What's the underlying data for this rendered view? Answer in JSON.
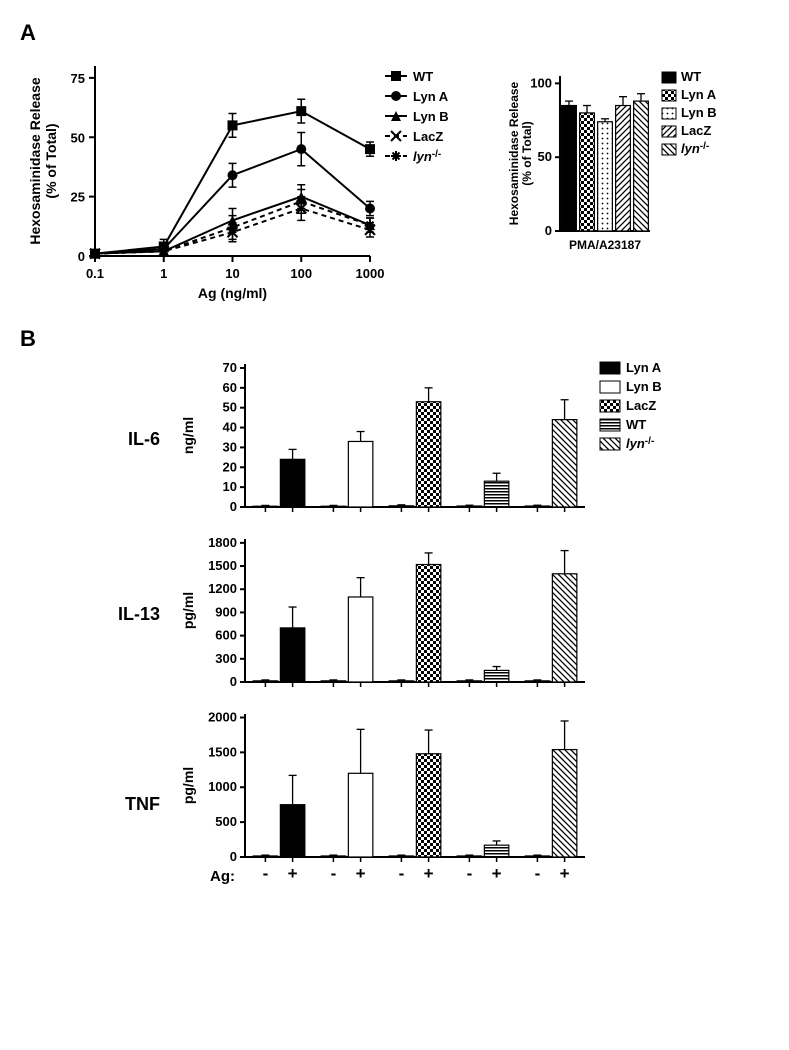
{
  "panelA": {
    "label": "A",
    "lineChart": {
      "type": "line",
      "xlabel": "Ag (ng/ml)",
      "ylabel_line1": "Hexosaminidase Release",
      "ylabel_line2": "(% of Total)",
      "xscale": "log",
      "xticks": [
        0.1,
        1,
        10,
        100,
        1000
      ],
      "xtick_labels": [
        "0.1",
        "1",
        "10",
        "100",
        "1000"
      ],
      "yticks": [
        0,
        25,
        50,
        75
      ],
      "ytick_labels": [
        "0",
        "25",
        "50",
        "75"
      ],
      "ylim": [
        0,
        80
      ],
      "series": [
        {
          "name": "WT",
          "marker": "square",
          "dash": "solid",
          "color": "#000000",
          "y": [
            1,
            4,
            55,
            61,
            45
          ],
          "err": [
            0,
            3,
            5,
            5,
            3
          ]
        },
        {
          "name": "Lyn A",
          "marker": "circle",
          "dash": "solid",
          "color": "#000000",
          "y": [
            1,
            3,
            34,
            45,
            20
          ],
          "err": [
            0,
            2,
            5,
            7,
            3
          ]
        },
        {
          "name": "Lyn B",
          "marker": "triangle",
          "dash": "solid",
          "color": "#000000",
          "y": [
            1,
            2,
            15,
            25,
            13
          ],
          "err": [
            0,
            1,
            5,
            5,
            3
          ]
        },
        {
          "name": "LacZ",
          "marker": "x",
          "dash": "dashed",
          "color": "#000000",
          "y": [
            1,
            2,
            10,
            20,
            11
          ],
          "err": [
            0,
            1,
            4,
            5,
            3
          ]
        },
        {
          "name": "lyn-/-",
          "marker": "asterisk",
          "dash": "dashed",
          "color": "#000000",
          "italic_prefix": "lyn",
          "suffix": "-/-",
          "y": [
            1,
            2,
            12,
            23,
            13
          ],
          "err": [
            0,
            1,
            5,
            5,
            3
          ]
        }
      ],
      "line_width": 2,
      "axis_color": "#000000"
    },
    "barChart": {
      "type": "bar",
      "ylabel_line1": "Hexosaminidase Release",
      "ylabel_line2": "(% of Total)",
      "xlabel": "PMA/A23187",
      "yticks": [
        0,
        50,
        100
      ],
      "ytick_labels": [
        "0",
        "50",
        "100"
      ],
      "ylim": [
        0,
        105
      ],
      "bars": [
        {
          "name": "WT",
          "value": 85,
          "err": 3,
          "fill": "solid"
        },
        {
          "name": "Lyn A",
          "value": 80,
          "err": 5,
          "fill": "check"
        },
        {
          "name": "Lyn B",
          "value": 74,
          "err": 2,
          "fill": "dots"
        },
        {
          "name": "LacZ",
          "value": 85,
          "err": 6,
          "fill": "diag1"
        },
        {
          "name": "lyn-/-",
          "value": 88,
          "err": 5,
          "fill": "diag2",
          "italic_prefix": "lyn",
          "suffix": "-/-"
        }
      ],
      "bar_color": "#000000",
      "bar_width": 0.7
    }
  },
  "panelB": {
    "label": "B",
    "ag_label": "Ag:",
    "ag_states": [
      "-",
      "+",
      "-",
      "+",
      "-",
      "+",
      "-",
      "+",
      "-",
      "+"
    ],
    "legend": [
      {
        "name": "Lyn A",
        "fill": "solid"
      },
      {
        "name": "Lyn B",
        "fill": "white"
      },
      {
        "name": "LacZ",
        "fill": "check"
      },
      {
        "name": "WT",
        "fill": "hstripe"
      },
      {
        "name": "lyn-/-",
        "fill": "diag2",
        "italic_prefix": "lyn",
        "suffix": "-/-"
      }
    ],
    "charts": [
      {
        "row_label": "IL-6",
        "ylabel": "ng/ml",
        "yticks": [
          0,
          10,
          20,
          30,
          40,
          50,
          60,
          70
        ],
        "ytick_labels": [
          "0",
          "10",
          "20",
          "30",
          "40",
          "50",
          "60",
          "70"
        ],
        "ylim": [
          0,
          72
        ],
        "groups": [
          {
            "fill": "solid",
            "minus": 0.4,
            "plus": 24,
            "minus_err": 0.4,
            "plus_err": 5
          },
          {
            "fill": "white",
            "minus": 0.4,
            "plus": 33,
            "minus_err": 0.4,
            "plus_err": 5
          },
          {
            "fill": "check",
            "minus": 0.6,
            "plus": 53,
            "minus_err": 0.5,
            "plus_err": 7
          },
          {
            "fill": "hstripe",
            "minus": 0.5,
            "plus": 13,
            "minus_err": 0.4,
            "plus_err": 4
          },
          {
            "fill": "diag2",
            "minus": 0.5,
            "plus": 44,
            "minus_err": 0.4,
            "plus_err": 10
          }
        ]
      },
      {
        "row_label": "IL-13",
        "ylabel": "pg/ml",
        "yticks": [
          0,
          300,
          600,
          900,
          1200,
          1500,
          1800
        ],
        "ytick_labels": [
          "0",
          "300",
          "600",
          "900",
          "1200",
          "1500",
          "1800"
        ],
        "ylim": [
          0,
          1850
        ],
        "groups": [
          {
            "fill": "solid",
            "minus": 15,
            "plus": 700,
            "minus_err": 12,
            "plus_err": 270
          },
          {
            "fill": "white",
            "minus": 15,
            "plus": 1100,
            "minus_err": 12,
            "plus_err": 250
          },
          {
            "fill": "check",
            "minus": 15,
            "plus": 1520,
            "minus_err": 12,
            "plus_err": 150
          },
          {
            "fill": "hstripe",
            "minus": 15,
            "plus": 150,
            "minus_err": 12,
            "plus_err": 50
          },
          {
            "fill": "diag2",
            "minus": 15,
            "plus": 1400,
            "minus_err": 12,
            "plus_err": 300
          }
        ]
      },
      {
        "row_label": "TNF",
        "ylabel": "pg/ml",
        "yticks": [
          0,
          500,
          1000,
          1500,
          2000
        ],
        "ytick_labels": [
          "0",
          "500",
          "1000",
          "1500",
          "2000"
        ],
        "ylim": [
          0,
          2050
        ],
        "groups": [
          {
            "fill": "solid",
            "minus": 15,
            "plus": 750,
            "minus_err": 12,
            "plus_err": 420
          },
          {
            "fill": "white",
            "minus": 15,
            "plus": 1200,
            "minus_err": 12,
            "plus_err": 630
          },
          {
            "fill": "check",
            "minus": 15,
            "plus": 1480,
            "minus_err": 12,
            "plus_err": 340
          },
          {
            "fill": "hstripe",
            "minus": 15,
            "plus": 170,
            "minus_err": 12,
            "plus_err": 60
          },
          {
            "fill": "diag2",
            "minus": 15,
            "plus": 1540,
            "minus_err": 12,
            "plus_err": 410
          }
        ]
      }
    ]
  },
  "colors": {
    "stroke": "#000000",
    "bg": "#ffffff"
  }
}
